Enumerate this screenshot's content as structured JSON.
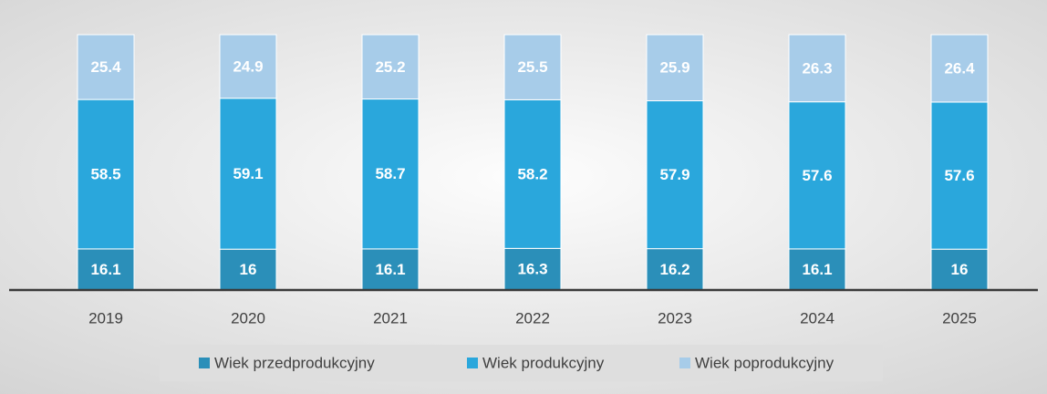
{
  "chart_data": {
    "type": "stacked_bar",
    "categories": [
      "2019",
      "2020",
      "2021",
      "2022",
      "2023",
      "2024",
      "2025"
    ],
    "series": [
      {
        "name": "Wiek przedprodukcyjny",
        "color": "#2b8fb9",
        "values": [
          16.1,
          16,
          16.1,
          16.3,
          16.2,
          16.1,
          16
        ]
      },
      {
        "name": "Wiek produkcyjny",
        "color": "#2aa7dc",
        "values": [
          58.5,
          59.1,
          58.7,
          58.2,
          57.9,
          57.6,
          57.6
        ]
      },
      {
        "name": "Wiek poprodukcyjny",
        "color": "#a7cce9",
        "values": [
          25.4,
          24.9,
          25.2,
          25.5,
          25.9,
          26.3,
          26.4
        ]
      }
    ],
    "ylim": [
      0,
      100
    ],
    "legend": "bottom"
  }
}
